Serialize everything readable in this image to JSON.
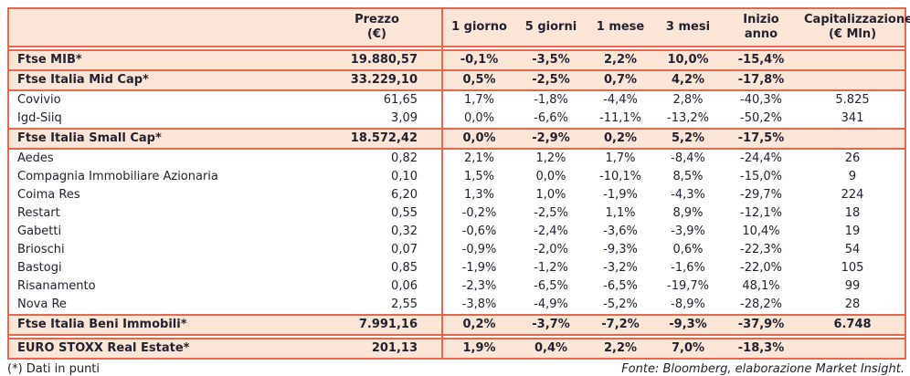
{
  "colors": {
    "accent": "#E9674F",
    "row_highlight": "#FBE5D6",
    "text": "#232230"
  },
  "table": {
    "columns": [
      {
        "label": "",
        "sub": ""
      },
      {
        "label": "Prezzo",
        "sub": "(€)"
      },
      {
        "label": "1 giorno",
        "sub": ""
      },
      {
        "label": "5 giorni",
        "sub": ""
      },
      {
        "label": "1 mese",
        "sub": ""
      },
      {
        "label": "3 mesi",
        "sub": ""
      },
      {
        "label": "Inizio anno",
        "sub": ""
      },
      {
        "label": "Capitalizzazione",
        "sub": "(€ Mln)"
      }
    ],
    "rows": [
      {
        "type": "index",
        "gap_before": true,
        "name": "Ftse MIB*",
        "values": [
          "19.880,57",
          "-0,1%",
          "-3,5%",
          "2,2%",
          "10,0%",
          "-15,4%",
          ""
        ]
      },
      {
        "type": "index",
        "gap_before": false,
        "name": "Ftse Italia Mid Cap*",
        "values": [
          "33.229,10",
          "0,5%",
          "-2,5%",
          "0,7%",
          "4,2%",
          "-17,8%",
          ""
        ]
      },
      {
        "type": "stock",
        "gap_before": false,
        "name": "Covivio",
        "values": [
          "61,65",
          "1,7%",
          "-1,8%",
          "-4,4%",
          "2,8%",
          "-40,3%",
          "5.825"
        ]
      },
      {
        "type": "stock",
        "gap_before": false,
        "name": "Igd-Siiq",
        "values": [
          "3,09",
          "0,0%",
          "-6,6%",
          "-11,1%",
          "-13,2%",
          "-50,2%",
          "341"
        ]
      },
      {
        "type": "index",
        "gap_before": false,
        "name": "Ftse Italia Small Cap*",
        "values": [
          "18.572,42",
          "0,0%",
          "-2,9%",
          "0,2%",
          "5,2%",
          "-17,5%",
          ""
        ]
      },
      {
        "type": "stock",
        "gap_before": false,
        "name": "Aedes",
        "values": [
          "0,82",
          "2,1%",
          "1,2%",
          "1,7%",
          "-8,4%",
          "-24,4%",
          "26"
        ]
      },
      {
        "type": "stock",
        "gap_before": false,
        "name": "Compagnia Immobiliare Azionaria",
        "values": [
          "0,10",
          "1,5%",
          "0,0%",
          "-10,1%",
          "8,5%",
          "-15,0%",
          "9"
        ]
      },
      {
        "type": "stock",
        "gap_before": false,
        "name": "Coima Res",
        "values": [
          "6,20",
          "1,3%",
          "1,0%",
          "-1,9%",
          "-4,3%",
          "-29,7%",
          "224"
        ]
      },
      {
        "type": "stock",
        "gap_before": false,
        "name": "Restart",
        "values": [
          "0,55",
          "-0,2%",
          "-2,5%",
          "1,1%",
          "8,9%",
          "-12,1%",
          "18"
        ]
      },
      {
        "type": "stock",
        "gap_before": false,
        "name": "Gabetti",
        "values": [
          "0,32",
          "-0,6%",
          "-2,4%",
          "-3,6%",
          "-3,9%",
          "10,4%",
          "19"
        ]
      },
      {
        "type": "stock",
        "gap_before": false,
        "name": "Brioschi",
        "values": [
          "0,07",
          "-0,9%",
          "-2,0%",
          "-9,3%",
          "0,6%",
          "-22,3%",
          "54"
        ]
      },
      {
        "type": "stock",
        "gap_before": false,
        "name": "Bastogi",
        "values": [
          "0,85",
          "-1,9%",
          "-1,2%",
          "-3,2%",
          "-1,6%",
          "-22,0%",
          "105"
        ]
      },
      {
        "type": "stock",
        "gap_before": false,
        "name": "Risanamento",
        "values": [
          "0,06",
          "-2,3%",
          "-6,5%",
          "-6,5%",
          "-19,7%",
          "48,1%",
          "99"
        ]
      },
      {
        "type": "stock",
        "gap_before": false,
        "name": "Nova Re",
        "values": [
          "2,55",
          "-3,8%",
          "-4,9%",
          "-5,2%",
          "-8,9%",
          "-28,2%",
          "28"
        ]
      },
      {
        "type": "index",
        "gap_before": false,
        "name": "Ftse Italia Beni Immobili*",
        "values": [
          "7.991,16",
          "0,2%",
          "-3,7%",
          "-7,2%",
          "-9,3%",
          "-37,9%",
          "6.748"
        ]
      },
      {
        "type": "index",
        "gap_before": true,
        "name": "EURO STOXX Real Estate*",
        "values": [
          "201,13",
          "1,9%",
          "0,4%",
          "2,2%",
          "7,0%",
          "-18,3%",
          ""
        ]
      }
    ]
  },
  "footer": {
    "note": "(*) Dati in punti",
    "source": "Fonte: Bloomberg, elaborazione Market Insight."
  }
}
